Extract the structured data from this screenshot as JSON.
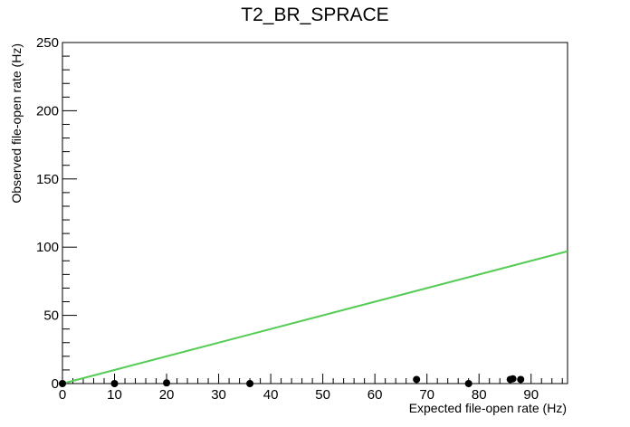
{
  "chart_data": {
    "type": "scatter",
    "title": "T2_BR_SPRACE",
    "xlabel": "Expected file-open rate (Hz)",
    "ylabel": "Observed file-open rate (Hz)",
    "xlim": [
      0,
      97
    ],
    "ylim": [
      0,
      250
    ],
    "x_ticks": [
      0,
      10,
      20,
      30,
      40,
      50,
      60,
      70,
      80,
      90
    ],
    "y_ticks": [
      0,
      50,
      100,
      150,
      200,
      250
    ],
    "grid": false,
    "points": {
      "x": [
        0,
        10,
        20,
        36,
        68,
        78,
        86,
        86.5,
        88
      ],
      "y": [
        0,
        0,
        0.5,
        0,
        3,
        0,
        3,
        3.5,
        3
      ]
    },
    "reference_line": {
      "x": [
        0,
        97
      ],
      "y": [
        0,
        97
      ],
      "color": "#55cc55"
    },
    "marker_color": "#000000"
  }
}
